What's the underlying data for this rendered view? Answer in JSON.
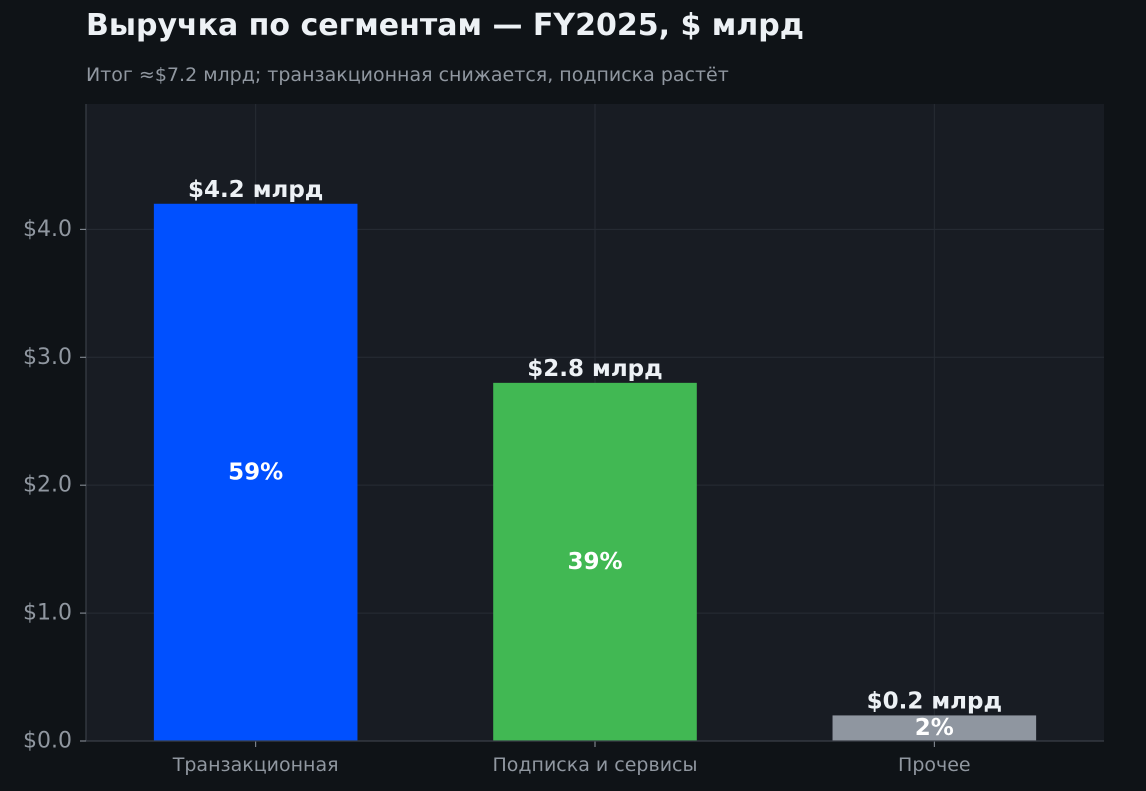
{
  "chart_data": {
    "type": "bar",
    "title": "Выручка по сегментам — FY2025, $ млрд",
    "subtitle": "Итог ≈$7.2 млрд; транзакционная снижается, подписка растёт",
    "categories": [
      "Транзакционная",
      "Подписка и сервисы",
      "Прочее"
    ],
    "values": [
      4.2,
      2.8,
      0.2
    ],
    "value_labels": [
      "$4.2 млрд",
      "$2.8 млрд",
      "$0.2 млрд"
    ],
    "share_labels": [
      "59%",
      "39%",
      "2%"
    ],
    "bar_colors": [
      "#0050ff",
      "#41b853",
      "#8f96a0"
    ],
    "yticks": [
      0,
      1,
      2,
      3,
      4
    ],
    "ytick_labels": [
      "$0.0",
      "$1.0",
      "$2.0",
      "$3.0",
      "$4.0"
    ],
    "ylim": [
      0,
      4.98
    ],
    "xlabel": "",
    "ylabel": "",
    "grid": true
  },
  "colors": {
    "page_background": "#0f1317",
    "plot_background": "#181c23",
    "grid": "#272c34",
    "axis": "#3a3f47",
    "tick_text": "#9097a0",
    "label_text": "#edf1f5"
  }
}
